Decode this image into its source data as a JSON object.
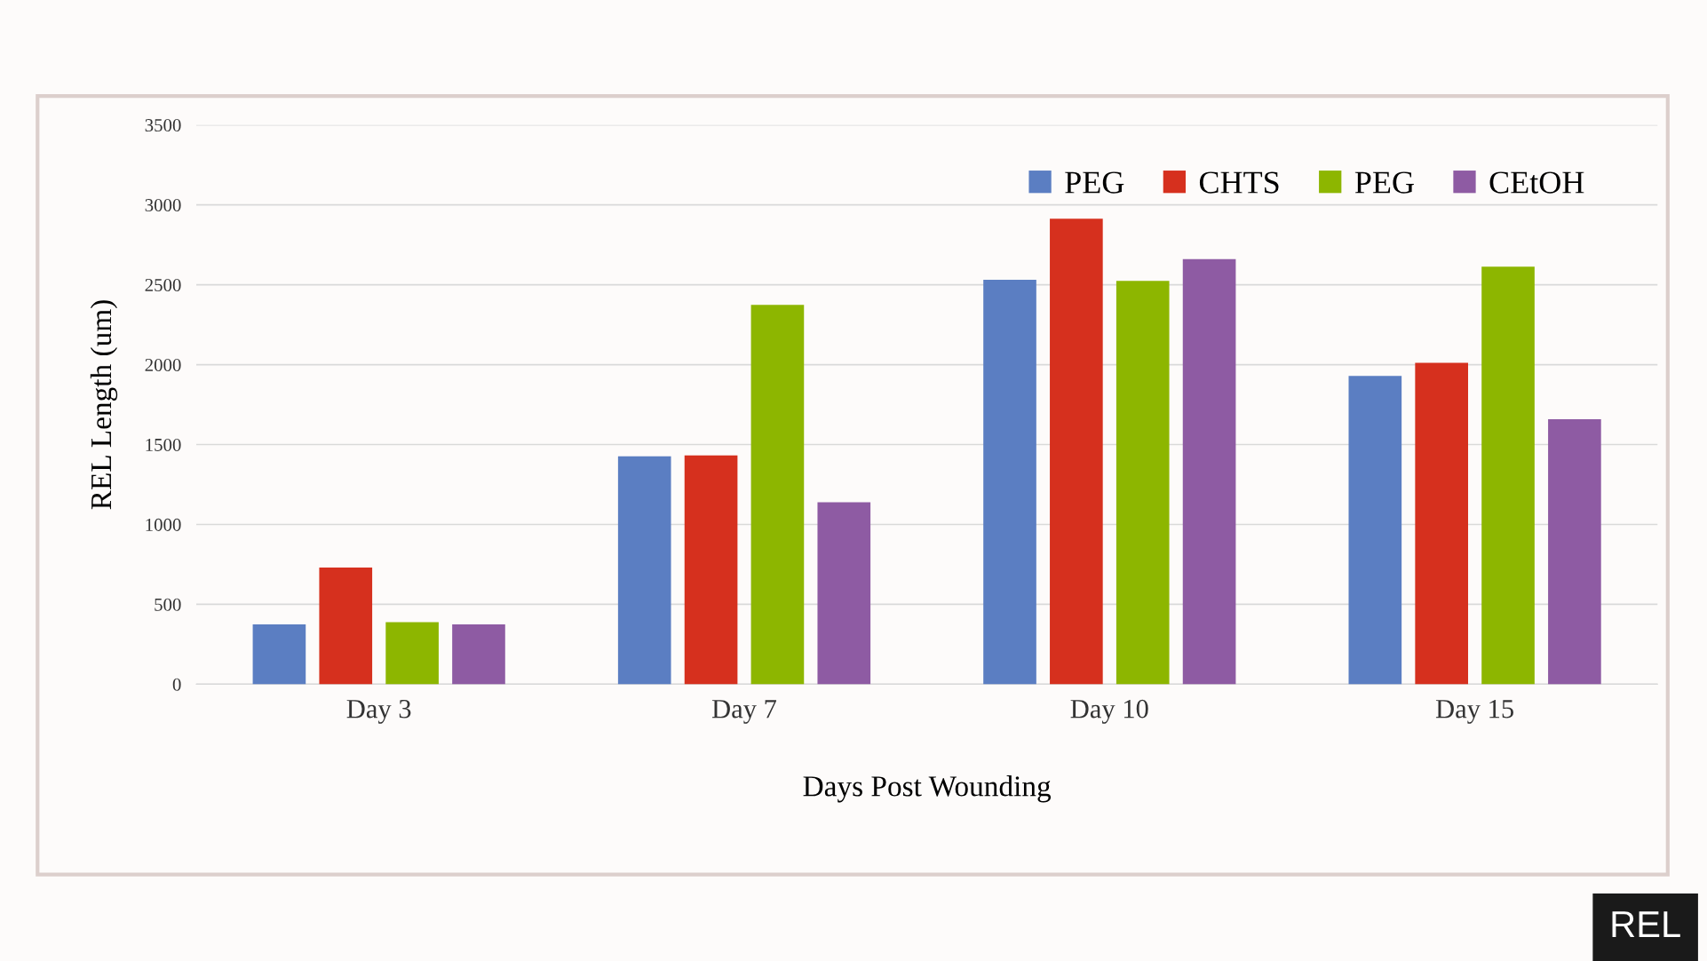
{
  "chart_data": {
    "type": "bar",
    "xlabel": "Days Post Wounding",
    "ylabel": "REL Length (um)",
    "categories": [
      "Day 3",
      "Day 7",
      "Day 10",
      "Day 15"
    ],
    "series": [
      {
        "name": "PEG",
        "color": "#5b7ec2",
        "values": [
          375,
          1426,
          2531,
          1930
        ]
      },
      {
        "name": "CHTS",
        "color": "#d6301e",
        "values": [
          730,
          1432,
          2913,
          2012
        ]
      },
      {
        "name": "PEG",
        "color": "#8db600",
        "values": [
          389,
          2374,
          2524,
          2613
        ]
      },
      {
        "name": "CEtOH",
        "color": "#8e5ba3",
        "values": [
          375,
          1139,
          2660,
          1658
        ]
      }
    ],
    "ylim": [
      0,
      3500
    ],
    "yticks": [
      0,
      500,
      1000,
      1500,
      2000,
      2500,
      3000,
      3500
    ],
    "grid": "y",
    "legend": "top right",
    "annotations": [
      "REL"
    ]
  }
}
